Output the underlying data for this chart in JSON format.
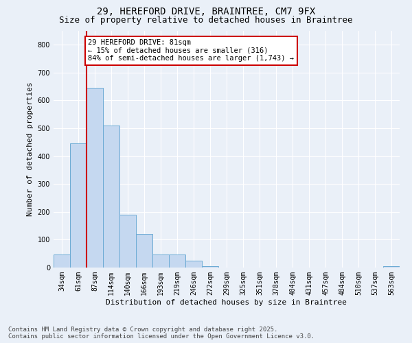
{
  "title_line1": "29, HEREFORD DRIVE, BRAINTREE, CM7 9FX",
  "title_line2": "Size of property relative to detached houses in Braintree",
  "xlabel": "Distribution of detached houses by size in Braintree",
  "ylabel": "Number of detached properties",
  "bin_labels": [
    "34sqm",
    "61sqm",
    "87sqm",
    "114sqm",
    "140sqm",
    "166sqm",
    "193sqm",
    "219sqm",
    "246sqm",
    "272sqm",
    "299sqm",
    "325sqm",
    "351sqm",
    "378sqm",
    "404sqm",
    "431sqm",
    "457sqm",
    "484sqm",
    "510sqm",
    "537sqm",
    "563sqm"
  ],
  "bar_heights": [
    47,
    447,
    645,
    510,
    190,
    120,
    47,
    47,
    25,
    5,
    0,
    0,
    0,
    0,
    0,
    0,
    0,
    0,
    0,
    0,
    5
  ],
  "bar_color": "#c5d8f0",
  "bar_edge_color": "#6aaad4",
  "vline_color": "#cc0000",
  "annotation_text": "29 HEREFORD DRIVE: 81sqm\n← 15% of detached houses are smaller (316)\n84% of semi-detached houses are larger (1,743) →",
  "annotation_box_color": "#ffffff",
  "annotation_box_edge": "#cc0000",
  "ylim": [
    0,
    850
  ],
  "yticks": [
    0,
    100,
    200,
    300,
    400,
    500,
    600,
    700,
    800
  ],
  "background_color": "#eaf0f8",
  "plot_bg_color": "#eaf0f8",
  "footer_line1": "Contains HM Land Registry data © Crown copyright and database right 2025.",
  "footer_line2": "Contains public sector information licensed under the Open Government Licence v3.0.",
  "title_fontsize": 10,
  "subtitle_fontsize": 9,
  "annotation_fontsize": 7.5,
  "footer_fontsize": 6.5,
  "ylabel_fontsize": 8,
  "xlabel_fontsize": 8,
  "tick_fontsize": 7
}
